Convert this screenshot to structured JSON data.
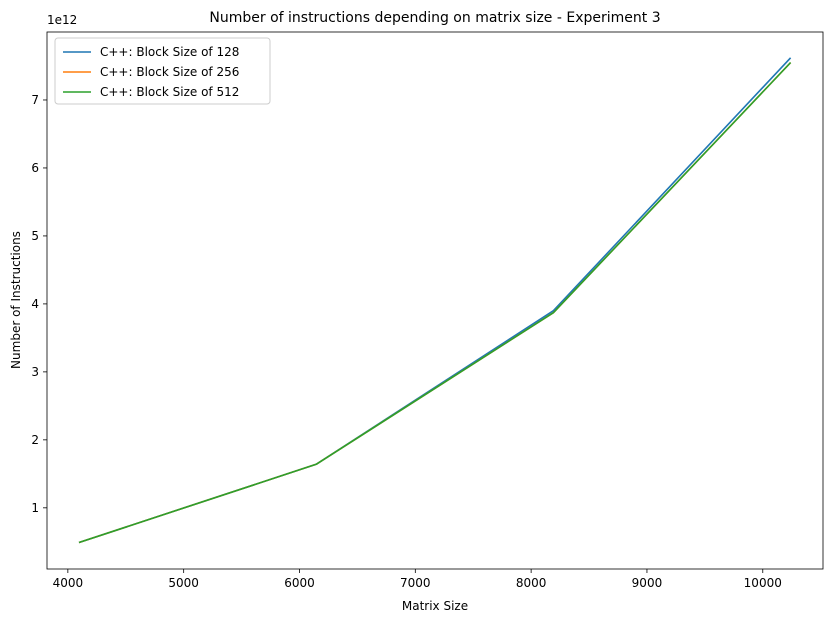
{
  "chart_data": {
    "type": "line",
    "title": "Number of instructions depending on matrix size - Experiment 3",
    "xlabel": "Matrix Size",
    "ylabel": "Number of Instructions",
    "y_offset_label": "1e12",
    "xlim": [
      3820,
      10520
    ],
    "ylim": [
      0.1,
      8.0
    ],
    "xticks": [
      4000,
      5000,
      6000,
      7000,
      8000,
      9000,
      10000
    ],
    "yticks": [
      1,
      2,
      3,
      4,
      5,
      6,
      7
    ],
    "grid": false,
    "legend_position": "top-left",
    "x": [
      4096,
      6144,
      8192,
      10240
    ],
    "series": [
      {
        "name": "C++: Block Size of 128",
        "color": "#1f77b4",
        "values": [
          0.49,
          1.64,
          3.9,
          7.62
        ]
      },
      {
        "name": "C++: Block Size of 256",
        "color": "#ff7f0e",
        "values": [
          0.49,
          1.64,
          3.87,
          7.55
        ]
      },
      {
        "name": "C++: Block Size of 512",
        "color": "#2ca02c",
        "values": [
          0.49,
          1.64,
          3.87,
          7.55
        ]
      }
    ]
  }
}
